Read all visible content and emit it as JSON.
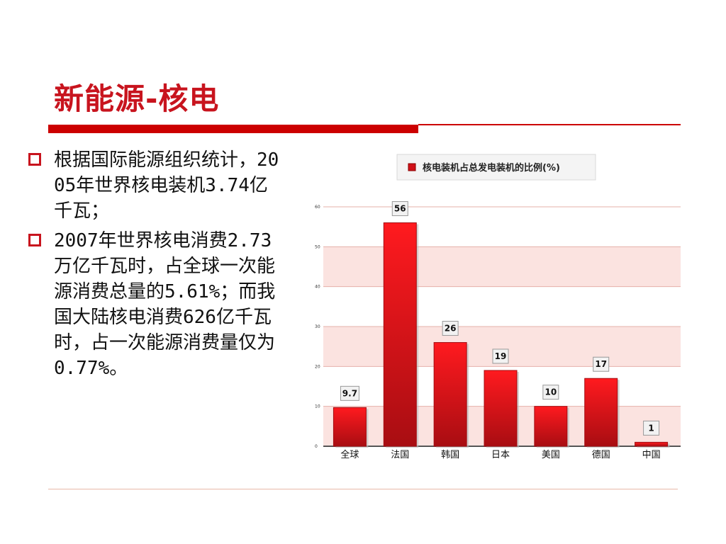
{
  "slide": {
    "title": "新能源-核电",
    "bullets": [
      "根据国际能源组织统计，2005年世界核电装机3.74亿千瓦；",
      "2007年世界核电消费2.73万亿千瓦时，占全球一次能源消费总量的5.61%；而我国大陆核电消费626亿千瓦时，占一次能源消费量仅为0.77%。"
    ]
  },
  "chart_data": {
    "type": "bar",
    "legend": "核电装机占总发电装机的比例(%)",
    "categories": [
      "全球",
      "法国",
      "韩国",
      "日本",
      "美国",
      "德国",
      "中国"
    ],
    "values": [
      9.7,
      56,
      26,
      19,
      10,
      17,
      1
    ],
    "data_labels": [
      "9.7",
      "56",
      "26",
      "19",
      "10",
      "17",
      "1"
    ],
    "yticks": [
      "0",
      "10",
      "20",
      "30",
      "40",
      "50",
      "60"
    ],
    "ylim": [
      0,
      60
    ],
    "grid": true,
    "legend_position": "top",
    "colors": {
      "bar": "#e8141a",
      "bar_dark": "#a30d12",
      "band": "#fbe3e0",
      "accent": "#c8141e"
    }
  }
}
